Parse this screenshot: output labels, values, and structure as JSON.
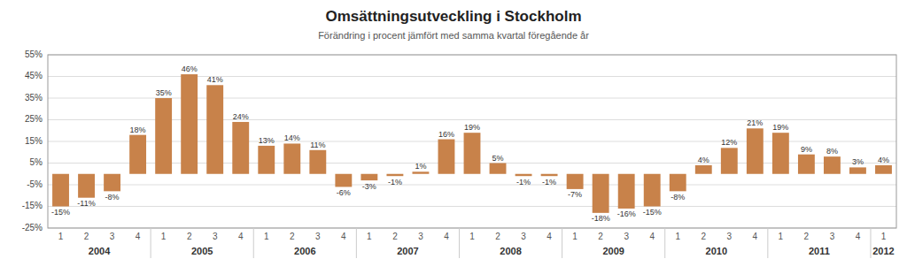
{
  "chart_data": {
    "type": "bar",
    "title": "Omsättningsutveckling i Stockholm",
    "subtitle": "Förändring i procent jämfört med samma kvartal föregående år",
    "categories": [
      "1",
      "2",
      "3",
      "4",
      "1",
      "2",
      "3",
      "4",
      "1",
      "2",
      "3",
      "4",
      "1",
      "2",
      "3",
      "4",
      "1",
      "2",
      "3",
      "4",
      "1",
      "2",
      "3",
      "4",
      "1",
      "2",
      "3",
      "4",
      "1",
      "2",
      "3",
      "4",
      "1"
    ],
    "category_groups": [
      {
        "label": "2004",
        "size": 4
      },
      {
        "label": "2005",
        "size": 4
      },
      {
        "label": "2006",
        "size": 4
      },
      {
        "label": "2007",
        "size": 4
      },
      {
        "label": "2008",
        "size": 4
      },
      {
        "label": "2009",
        "size": 4
      },
      {
        "label": "2010",
        "size": 4
      },
      {
        "label": "2011",
        "size": 4
      },
      {
        "label": "2012",
        "size": 1
      }
    ],
    "values": [
      -15,
      -11,
      -8,
      18,
      35,
      46,
      41,
      24,
      13,
      14,
      11,
      -6,
      -3,
      -1,
      1,
      16,
      19,
      5,
      -1,
      -1,
      -7,
      -18,
      -16,
      -15,
      -8,
      4,
      12,
      21,
      19,
      9,
      8,
      3,
      4
    ],
    "value_labels": [
      "-15%",
      "-11%",
      "-8%",
      "18%",
      "35%",
      "46%",
      "41%",
      "24%",
      "13%",
      "14%",
      "11%",
      "-6%",
      "-3%",
      "-1%",
      "1%",
      "16%",
      "19%",
      "5%",
      "-1%",
      "-1%",
      "-7%",
      "-18%",
      "-16%",
      "-15%",
      "-8%",
      "4%",
      "12%",
      "21%",
      "19%",
      "9%",
      "8%",
      "3%",
      "4%"
    ],
    "data_labels": true,
    "color": "#C8824A",
    "ylim": [
      -25,
      55
    ],
    "yticks": [
      {
        "value": -25,
        "label": "-25%"
      },
      {
        "value": -15,
        "label": "-15%"
      },
      {
        "value": -5,
        "label": "-5%"
      },
      {
        "value": 5,
        "label": "5%"
      },
      {
        "value": 15,
        "label": "15%"
      },
      {
        "value": 25,
        "label": "25%"
      },
      {
        "value": 35,
        "label": "35%"
      },
      {
        "value": 45,
        "label": "45%"
      },
      {
        "value": 55,
        "label": "55%"
      }
    ],
    "grid": true
  }
}
